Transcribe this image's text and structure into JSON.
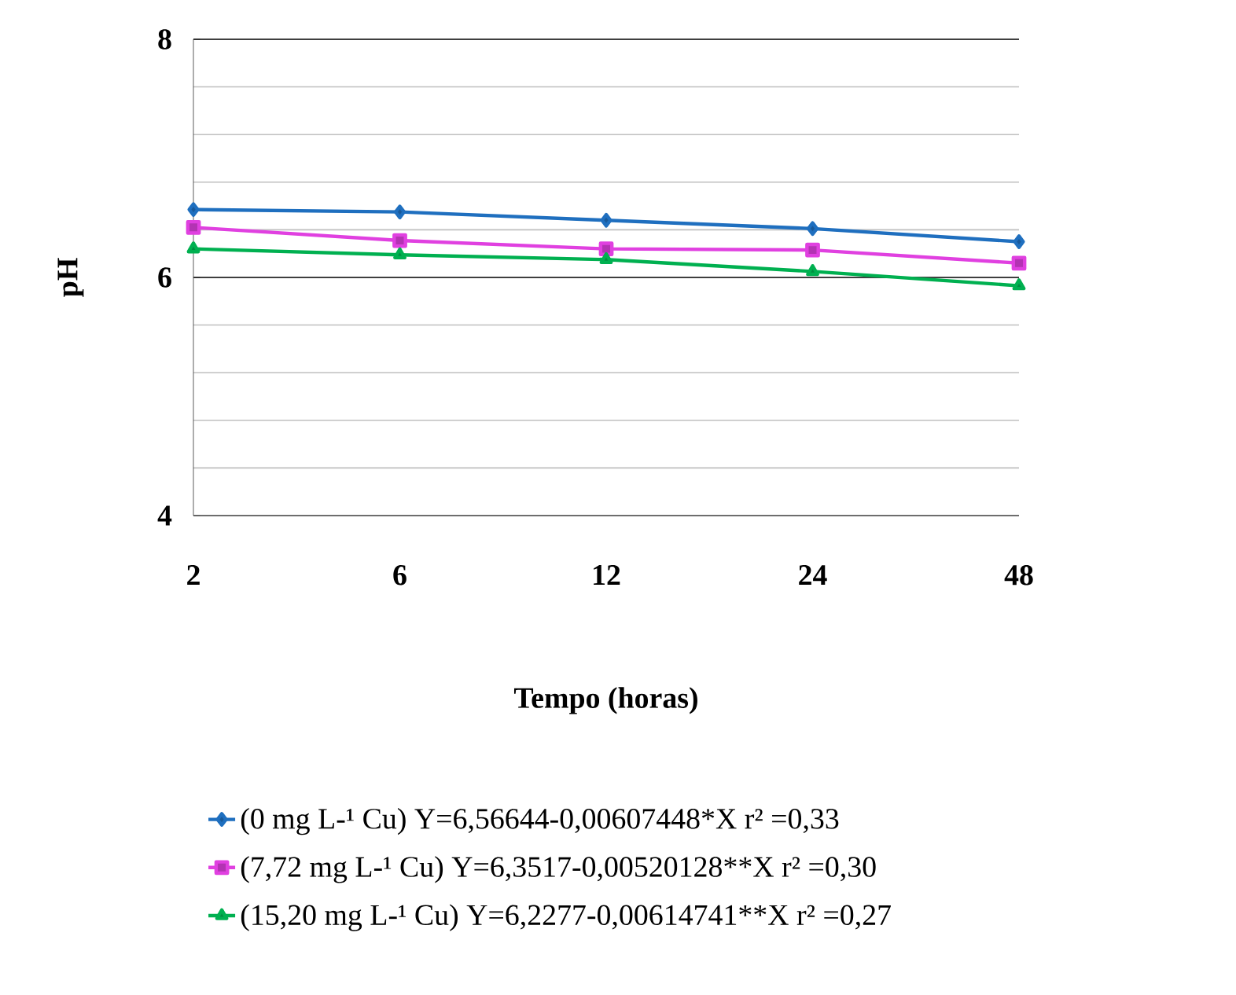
{
  "chart_data": {
    "type": "line",
    "xlabel": "Tempo (horas)",
    "ylabel": "pH",
    "categories": [
      "2",
      "6",
      "12",
      "24",
      "48"
    ],
    "ylim": [
      4,
      8
    ],
    "yticks": [
      4,
      6,
      8
    ],
    "grid": "y",
    "legend": "bottom",
    "series": [
      {
        "name": "(0 mg L-¹ Cu) Y=6,56644-0,00607448*X    r² =0,33",
        "color": "#1f6fbf",
        "marker": "diamond",
        "values": [
          6.57,
          6.55,
          6.48,
          6.41,
          6.3
        ]
      },
      {
        "name": "(7,72 mg L-¹ Cu) Y=6,3517-0,00520128**X    r² =0,30",
        "color": "#e040e0",
        "marker": "square",
        "values": [
          6.42,
          6.31,
          6.24,
          6.23,
          6.12
        ]
      },
      {
        "name": "(15,20 mg L-¹ Cu)  Y=6,2277-0,00614741**X   r² =0,27",
        "color": "#00b050",
        "marker": "triangle",
        "values": [
          6.24,
          6.19,
          6.15,
          6.05,
          5.93
        ]
      }
    ]
  }
}
